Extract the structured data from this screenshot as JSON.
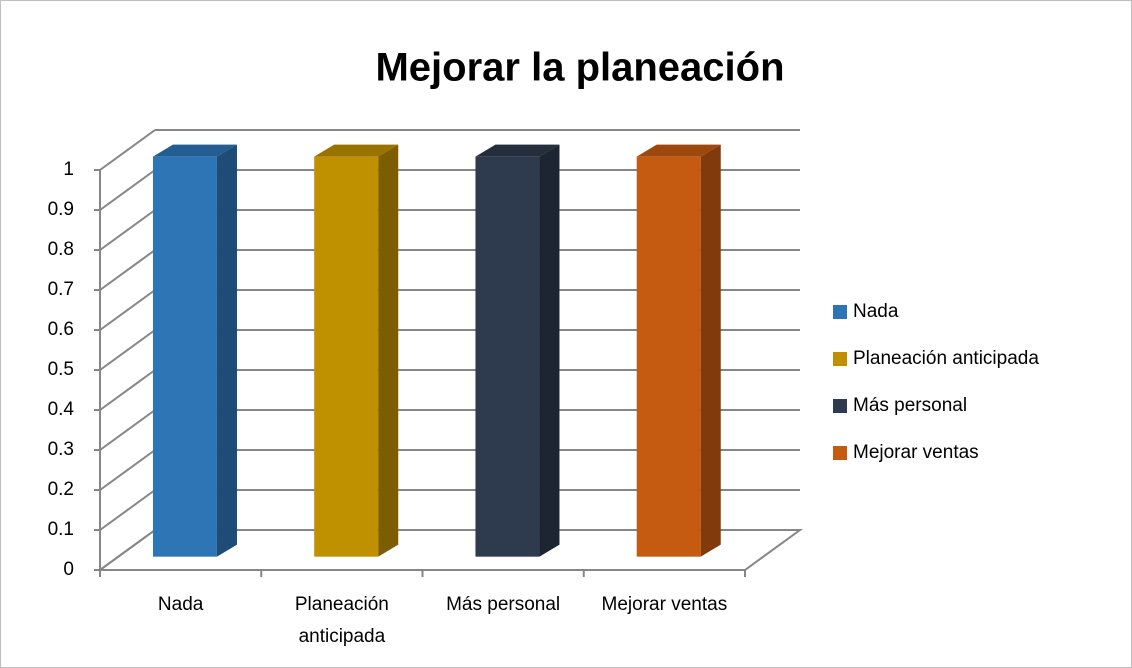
{
  "chart_data": {
    "type": "bar3d",
    "title": "Mejorar la planeación",
    "categories": [
      "Nada",
      "Planeación anticipada",
      "Más personal",
      "Mejorar ventas"
    ],
    "values": [
      1,
      1,
      1,
      1
    ],
    "colors": [
      "#2e75b6",
      "#bf9000",
      "#2e3a4d",
      "#c55a11"
    ],
    "ylim": [
      0,
      1
    ],
    "yticks": [
      0,
      0.1,
      0.2,
      0.3,
      0.4,
      0.5,
      0.6,
      0.7,
      0.8,
      0.9,
      1
    ],
    "grid": true,
    "legend": "right"
  }
}
